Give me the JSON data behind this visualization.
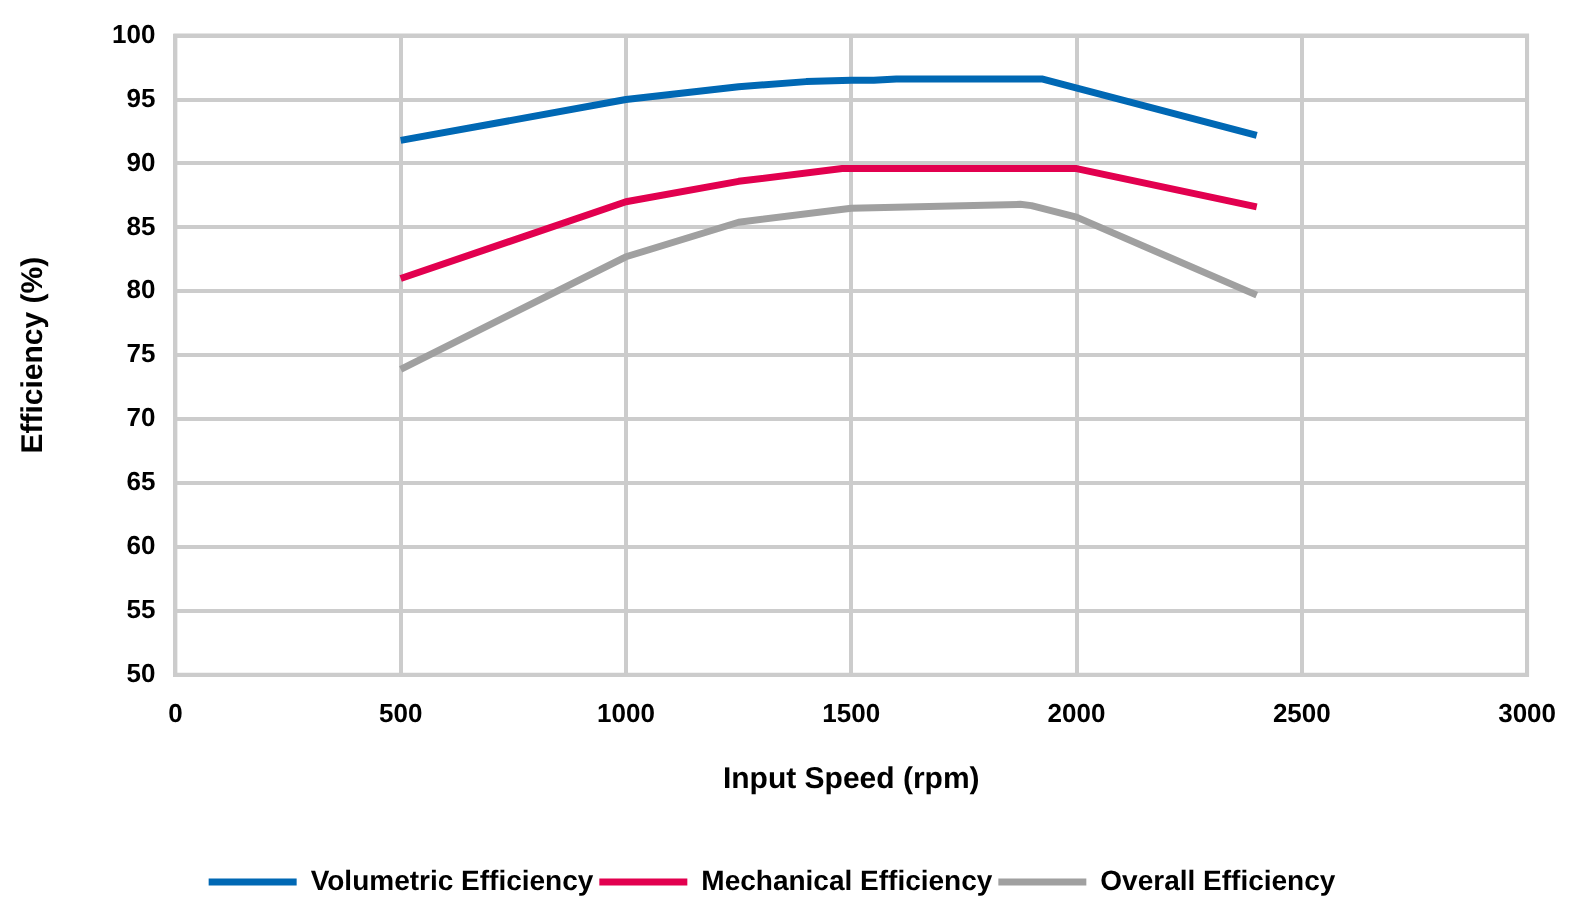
{
  "chart_data": {
    "type": "line",
    "xlabel": "Input Speed (rpm)",
    "ylabel": "Efficiency (%)",
    "xlim": [
      0,
      3000
    ],
    "xticks": [
      0,
      500,
      1000,
      1500,
      2000,
      2500,
      3000
    ],
    "ylim": [
      50,
      100
    ],
    "yticks": [
      50,
      55,
      60,
      65,
      70,
      75,
      80,
      85,
      90,
      95,
      100
    ],
    "grid": true,
    "legend": "bottom",
    "marker": "none",
    "line_style": "solid",
    "series": [
      {
        "name": "Volumetric Efficiency",
        "color": "#0068b4",
        "x": [
          500,
          1000,
          1250,
          1400,
          1500,
          1550,
          1600,
          1925,
          2400
        ],
        "values": [
          91.8,
          95,
          96,
          96.4,
          96.5,
          96.5,
          96.6,
          96.6,
          92.2
        ]
      },
      {
        "name": "Mechanical Efficiency",
        "color": "#e2004f",
        "x": [
          500,
          1000,
          1250,
          1480,
          2000,
          2400
        ],
        "values": [
          81,
          87,
          88.6,
          89.6,
          89.6,
          86.6
        ]
      },
      {
        "name": "Overall Efficiency",
        "color": "#a0a0a0",
        "x": [
          500,
          1000,
          1250,
          1500,
          1875,
          1900,
          2000,
          2400
        ],
        "values": [
          73.9,
          82.7,
          85.4,
          86.5,
          86.8,
          86.7,
          85.8,
          79.7
        ]
      }
    ]
  }
}
